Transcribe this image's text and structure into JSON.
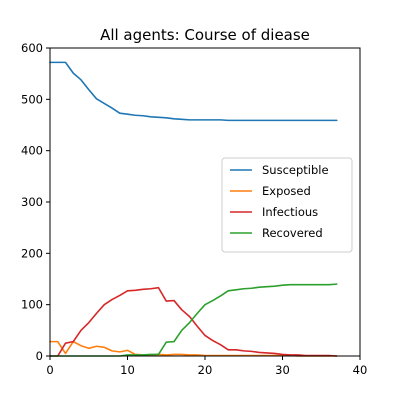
{
  "chart_data": {
    "type": "line",
    "title": "All agents: Course of diease",
    "xlabel": "",
    "ylabel": "",
    "xlim": [
      0,
      40
    ],
    "ylim": [
      0,
      600
    ],
    "xticks": [
      0,
      10,
      20,
      30,
      40
    ],
    "yticks": [
      0,
      100,
      200,
      300,
      400,
      500,
      600
    ],
    "grid": false,
    "legend_position": "center-right",
    "x": [
      0,
      1,
      2,
      3,
      4,
      5,
      6,
      7,
      8,
      9,
      10,
      11,
      12,
      13,
      14,
      15,
      16,
      17,
      18,
      19,
      20,
      21,
      22,
      23,
      24,
      25,
      26,
      27,
      28,
      29,
      30,
      31,
      32,
      33,
      34,
      35,
      36,
      37
    ],
    "series": [
      {
        "name": "Susceptible",
        "color": "#1f77b4",
        "values": [
          572,
          572,
          572,
          551,
          538,
          519,
          501,
          492,
          483,
          473,
          471,
          469,
          468,
          466,
          465,
          464,
          462,
          461,
          460,
          460,
          460,
          460,
          460,
          459,
          459,
          459,
          459,
          459,
          459,
          459,
          459,
          459,
          459,
          459,
          459,
          459,
          459,
          459
        ]
      },
      {
        "name": "Exposed",
        "color": "#ff7f0e",
        "values": [
          28,
          28,
          5,
          28,
          20,
          15,
          19,
          17,
          10,
          8,
          11,
          3,
          2,
          2,
          3,
          2,
          3,
          3,
          2,
          2,
          1,
          1,
          1,
          1,
          1,
          1,
          1,
          1,
          1,
          1,
          1,
          1,
          0,
          0,
          0,
          0,
          0,
          0
        ]
      },
      {
        "name": "Infectious",
        "color": "#d62728",
        "values": [
          0,
          0,
          25,
          28,
          50,
          65,
          83,
          100,
          110,
          118,
          127,
          128,
          130,
          131,
          133,
          107,
          108,
          90,
          77,
          58,
          40,
          30,
          22,
          12,
          12,
          10,
          9,
          7,
          6,
          5,
          3,
          2,
          2,
          1,
          1,
          1,
          1,
          0
        ]
      },
      {
        "name": "Recovered",
        "color": "#2ca02c",
        "values": [
          0,
          0,
          0,
          0,
          0,
          0,
          0,
          0,
          0,
          0,
          2,
          2,
          2,
          3,
          3,
          27,
          28,
          50,
          65,
          83,
          100,
          108,
          117,
          127,
          129,
          131,
          132,
          134,
          135,
          136,
          138,
          139,
          139,
          139,
          139,
          139,
          139,
          140
        ]
      }
    ]
  }
}
